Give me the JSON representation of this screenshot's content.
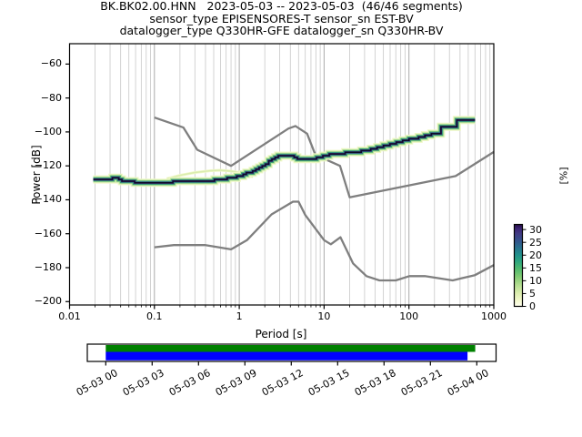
{
  "title_line1": "BK.BK02.00.HNN   2023-05-03 -- 2023-05-03  (46/46 segments)",
  "title_line2": "sensor_type EPISENSORES-T sensor_sn EST-BV",
  "title_line3": "datalogger_type Q330HR-GFE datalogger_sn Q330HR-BV",
  "axes": {
    "xlabel": "Period [s]",
    "ylabel": "Power [dB]",
    "x_tick_labels": [
      "0.01",
      "0.1",
      "1",
      "10",
      "100",
      "1000"
    ],
    "x_tick_values": [
      0.01,
      0.1,
      1,
      10,
      100,
      1000
    ],
    "y_tick_labels": [
      "−60",
      "−80",
      "−100",
      "−120",
      "−140",
      "−160",
      "−180",
      "−200"
    ],
    "y_tick_values": [
      -60,
      -80,
      -100,
      -120,
      -140,
      -160,
      -180,
      -200
    ]
  },
  "colorbar": {
    "label": "[%]",
    "tick_labels": [
      "30",
      "25",
      "20",
      "15",
      "10",
      "5",
      "0"
    ],
    "tick_values": [
      30,
      25,
      20,
      15,
      10,
      5,
      0
    ],
    "vmin": 0,
    "vmax": 32,
    "gradient": [
      [
        0,
        "#fdfdef"
      ],
      [
        0.07,
        "#f3f8cd"
      ],
      [
        0.16,
        "#dcedaf"
      ],
      [
        0.26,
        "#b4de91"
      ],
      [
        0.36,
        "#82cb74"
      ],
      [
        0.46,
        "#50ba6e"
      ],
      [
        0.55,
        "#2da67f"
      ],
      [
        0.63,
        "#21908c"
      ],
      [
        0.73,
        "#2a6c8e"
      ],
      [
        0.81,
        "#35508b"
      ],
      [
        0.89,
        "#413a83"
      ],
      [
        0.95,
        "#3b2374"
      ],
      [
        1,
        "#250d43"
      ]
    ]
  },
  "coverage": {
    "date_labels": [
      "05-03 00",
      "05-03 03",
      "05-03 06",
      "05-03 09",
      "05-03 12",
      "05-03 15",
      "05-03 18",
      "05-03 21",
      "05-04 00"
    ],
    "tick_hours": [
      0,
      3,
      6,
      9,
      12,
      15,
      18,
      21,
      24
    ],
    "green_span_hours": [
      0,
      23.9
    ],
    "blue_span_hours": [
      0,
      23.4
    ],
    "green_color": "#008000",
    "blue_color": "#0000ff"
  },
  "colors": {
    "grid_major": "#ababab",
    "grid_minor": "#c8c8c8",
    "noise_model": "#7f7f7f",
    "band_core": "#0d0c28",
    "band_purple": "#46327e",
    "band_teal": "#2a788e",
    "band_green": "#4bb06a",
    "band_lightgreen": "#bce4a0",
    "band_cream": "#f0f8c8",
    "fringe": "#d9ecae",
    "spine": "#000000"
  },
  "chart_data": {
    "type": "heatmap",
    "title": "BK.BK02.00.HNN 2023-05-03 -- 2023-05-03 (46/46 segments)",
    "subtitle_sensor": "sensor_type EPISENSORES-T sensor_sn EST-BV",
    "subtitle_datalogger": "datalogger_type Q330HR-GFE datalogger_sn Q330HR-BV",
    "xlabel": "Period [s]",
    "ylabel": "Power [dB]",
    "colorbar_label": "[%]",
    "xscale": "log",
    "xlim": [
      0.01,
      1000
    ],
    "ylim": [
      -200,
      -50
    ],
    "grid": "vertical-only",
    "legend": "none",
    "segments_used": 46,
    "segments_total": 46,
    "colorbar_range_percent": [
      0,
      32
    ],
    "colorbar_ticks_percent": [
      0,
      5,
      10,
      15,
      20,
      25,
      30
    ],
    "ppsd_mode_db_by_period": [
      [
        0.019,
        -128.3
      ],
      [
        0.025,
        -128.3
      ],
      [
        0.03,
        -127.7
      ],
      [
        0.034,
        -126.5
      ],
      [
        0.04,
        -128.4
      ],
      [
        0.05,
        -129.3
      ],
      [
        0.08,
        -129.8
      ],
      [
        0.13,
        -129.6
      ],
      [
        0.2,
        -129.4
      ],
      [
        0.3,
        -129.2
      ],
      [
        0.4,
        -128.9
      ],
      [
        0.55,
        -128.4
      ],
      [
        0.7,
        -127.7
      ],
      [
        0.9,
        -126.7
      ],
      [
        1.1,
        -125.5
      ],
      [
        1.4,
        -123.7
      ],
      [
        1.8,
        -121.2
      ],
      [
        2.3,
        -117.5
      ],
      [
        2.9,
        -114.2
      ],
      [
        3.5,
        -113.6
      ],
      [
        4.2,
        -114.4
      ],
      [
        5,
        -115.6
      ],
      [
        6,
        -116.3
      ],
      [
        7.5,
        -116.2
      ],
      [
        8.6,
        -115.1
      ],
      [
        10,
        -114.3
      ],
      [
        12,
        -113.4
      ],
      [
        14,
        -112.8
      ],
      [
        17,
        -112.6
      ],
      [
        20,
        -112.4
      ],
      [
        25,
        -111.9
      ],
      [
        30,
        -111.3
      ],
      [
        42,
        -109.4
      ],
      [
        55,
        -107.9
      ],
      [
        70,
        -106.7
      ],
      [
        90,
        -105
      ],
      [
        115,
        -103.9
      ],
      [
        150,
        -102.9
      ],
      [
        190,
        -101.3
      ],
      [
        230,
        -100.6
      ],
      [
        243,
        -96.6
      ],
      [
        368,
        -96.5
      ],
      [
        382,
        -92.8
      ],
      [
        600,
        -92.7
      ]
    ],
    "ppsd_upper_fringe_db_by_period": [
      [
        0.14,
        -127.6
      ],
      [
        0.2,
        -125.6
      ],
      [
        0.3,
        -123.9
      ],
      [
        0.45,
        -122.9
      ],
      [
        0.6,
        -122.6
      ],
      [
        0.8,
        -123.1
      ],
      [
        1.0,
        -123.9
      ],
      [
        1.2,
        -125.1
      ],
      [
        1.45,
        -126.5
      ]
    ],
    "noise_models": {
      "nhnm": [
        [
          0.1,
          -91.5
        ],
        [
          0.22,
          -97.4
        ],
        [
          0.32,
          -110.5
        ],
        [
          0.8,
          -120
        ],
        [
          3.8,
          -98
        ],
        [
          4.6,
          -96.5
        ],
        [
          6.3,
          -101
        ],
        [
          7.9,
          -113.5
        ],
        [
          15.4,
          -120
        ],
        [
          20,
          -138.5
        ],
        [
          354.8,
          -126
        ],
        [
          1000,
          -111.8
        ]
      ],
      "nlnm": [
        [
          0.1,
          -168
        ],
        [
          0.17,
          -166.7
        ],
        [
          0.4,
          -166.7
        ],
        [
          0.8,
          -169.2
        ],
        [
          1.24,
          -163.7
        ],
        [
          2.4,
          -148.6
        ],
        [
          4.3,
          -141.1
        ],
        [
          5,
          -141.1
        ],
        [
          6,
          -149
        ],
        [
          10,
          -163.8
        ],
        [
          12,
          -166.2
        ],
        [
          15.6,
          -162.1
        ],
        [
          21.9,
          -177.5
        ],
        [
          31.6,
          -185
        ],
        [
          45,
          -187.5
        ],
        [
          70,
          -187.5
        ],
        [
          101,
          -185
        ],
        [
          154,
          -185
        ],
        [
          328,
          -187.5
        ],
        [
          600,
          -184.4
        ],
        [
          1000,
          -178.5
        ]
      ]
    },
    "coverage_hours": {
      "axis_start": "2023-05-03 00:00",
      "axis_end": "2023-05-04 00:00",
      "ticks": [
        0,
        3,
        6,
        9,
        12,
        15,
        18,
        21,
        24
      ],
      "data_green": [
        0,
        23.9
      ],
      "used_blue": [
        0,
        23.4
      ]
    }
  }
}
